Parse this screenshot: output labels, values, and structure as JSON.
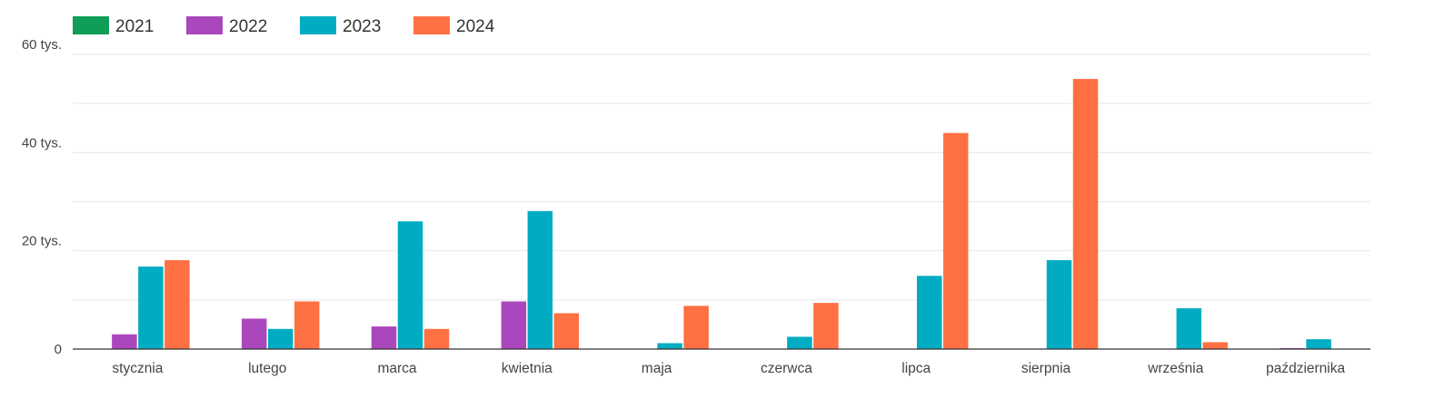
{
  "chart_data": {
    "type": "bar",
    "title": "",
    "xlabel": "",
    "ylabel": "",
    "categories": [
      "stycznia",
      "lutego",
      "marca",
      "kwietnia",
      "maja",
      "czerwca",
      "lipca",
      "sierpnia",
      "września",
      "października"
    ],
    "series": [
      {
        "name": "2021",
        "color": "#0f9d58",
        "values": [
          0,
          0,
          0,
          0,
          0,
          0,
          0,
          0,
          0,
          0
        ]
      },
      {
        "name": "2022",
        "color": "#ab47bc",
        "values": [
          3000,
          6200,
          4600,
          9700,
          0,
          0,
          0,
          0,
          0,
          200
        ]
      },
      {
        "name": "2023",
        "color": "#00acc1",
        "values": [
          16800,
          4100,
          26000,
          28100,
          1200,
          2500,
          14900,
          18100,
          8300,
          2000
        ]
      },
      {
        "name": "2024",
        "color": "#ff7043",
        "values": [
          18100,
          9700,
          4100,
          7300,
          8800,
          9400,
          44000,
          55000,
          1400,
          null
        ]
      }
    ],
    "ylim": [
      0,
      60000
    ],
    "y_ticks": [
      {
        "value": 0,
        "label": "0"
      },
      {
        "value": 20000,
        "label": "20 tys."
      },
      {
        "value": 40000,
        "label": "40 tys."
      },
      {
        "value": 60000,
        "label": "60 tys."
      }
    ],
    "y_minor_gridlines": [
      10000,
      30000,
      50000
    ],
    "grid": true,
    "legend": "top-left",
    "colors": {
      "grid": "#e6e6e6",
      "axis": "#333333",
      "text": "#444444"
    }
  }
}
